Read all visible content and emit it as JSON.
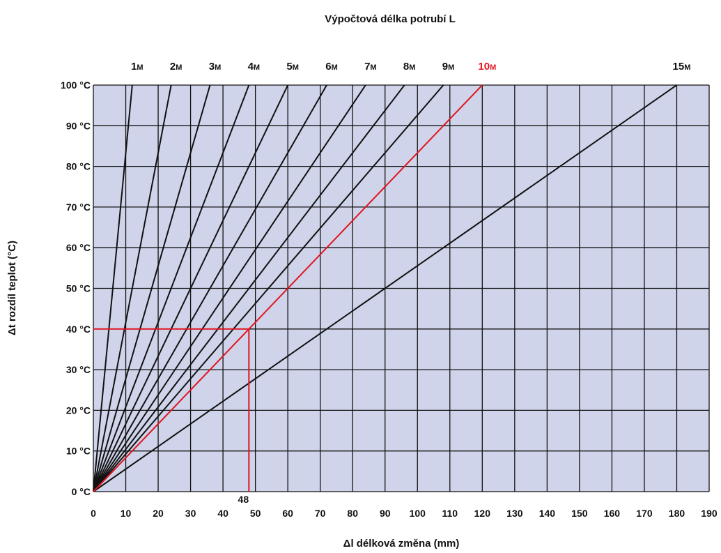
{
  "chart_data": {
    "type": "line",
    "title": "Výpočtová délka potrubí L",
    "xlabel": "Δl  délková změna (mm)",
    "ylabel": "Δt  rozdíl teplot (°C)",
    "xlim": [
      0,
      190
    ],
    "ylim": [
      0,
      100
    ],
    "x_ticks": [
      "0",
      "10",
      "20",
      "30",
      "40",
      "50",
      "60",
      "70",
      "80",
      "90",
      "100",
      "110",
      "120",
      "130",
      "140",
      "150",
      "160",
      "170",
      "180",
      "190"
    ],
    "y_ticks": [
      "0 °C",
      "10 °C",
      "20 °C",
      "30 °C",
      "40 °C",
      "50 °C",
      "60 °C",
      "70 °C",
      "80 °C",
      "90 °C",
      "100 °C"
    ],
    "grid": true,
    "series": [
      {
        "name": "1",
        "unit": "M",
        "x": [
          0,
          12
        ],
        "y": [
          0,
          100
        ]
      },
      {
        "name": "2",
        "unit": "M",
        "x": [
          0,
          24
        ],
        "y": [
          0,
          100
        ]
      },
      {
        "name": "3",
        "unit": "M",
        "x": [
          0,
          36
        ],
        "y": [
          0,
          100
        ]
      },
      {
        "name": "4",
        "unit": "M",
        "x": [
          0,
          48
        ],
        "y": [
          0,
          100
        ]
      },
      {
        "name": "5",
        "unit": "M",
        "x": [
          0,
          60
        ],
        "y": [
          0,
          100
        ]
      },
      {
        "name": "6",
        "unit": "M",
        "x": [
          0,
          72
        ],
        "y": [
          0,
          100
        ]
      },
      {
        "name": "7",
        "unit": "M",
        "x": [
          0,
          84
        ],
        "y": [
          0,
          100
        ]
      },
      {
        "name": "8",
        "unit": "M",
        "x": [
          0,
          96
        ],
        "y": [
          0,
          100
        ]
      },
      {
        "name": "9",
        "unit": "M",
        "x": [
          0,
          108
        ],
        "y": [
          0,
          100
        ]
      },
      {
        "name": "10",
        "unit": "M",
        "x": [
          0,
          120
        ],
        "y": [
          0,
          100
        ],
        "highlight": true
      },
      {
        "name": "15",
        "unit": "M",
        "x": [
          0,
          180
        ],
        "y": [
          0,
          100
        ]
      }
    ],
    "annotations": [
      {
        "label": "40 °C",
        "y": 40,
        "highlight": true
      },
      {
        "label": "48",
        "x": 48,
        "y": 40,
        "highlight": true
      }
    ]
  },
  "colors": {
    "plot_background": "#d0d4ea",
    "grid": "#111111",
    "line": "#111111",
    "highlight": "#e0141e",
    "text": "#111111"
  }
}
